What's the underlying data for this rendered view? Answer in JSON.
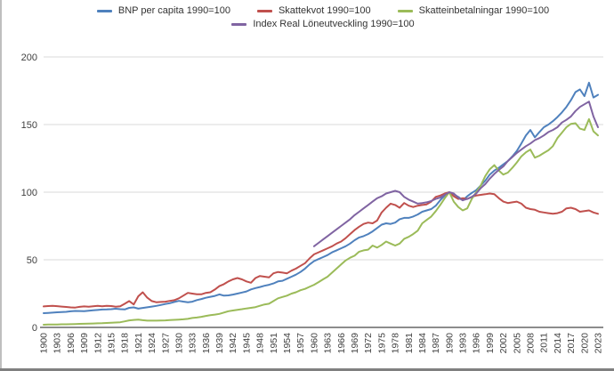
{
  "page": {
    "background": "#ffffff",
    "left_border_color": "#bfbfbf",
    "bottom_border_color": "#808080"
  },
  "chart": {
    "gridline_color": "#d9d9d9",
    "axis_line_color": "#8c8c8c",
    "tick_label_color": "#404040",
    "legend_rows": [
      [
        0,
        1,
        2
      ],
      [
        3
      ]
    ]
  },
  "chart_data": {
    "type": "line",
    "title": "",
    "xlabel": "",
    "ylabel": "",
    "ylim": [
      0,
      200
    ],
    "yticks": [
      0,
      50,
      100,
      150,
      200
    ],
    "grid": true,
    "legend_position": "top",
    "x_start": 1900,
    "x_end": 2023,
    "xtick_labels": [
      "1900",
      "1903",
      "1906",
      "1909",
      "1912",
      "1915",
      "1918",
      "1921",
      "1924",
      "1927",
      "1930",
      "1933",
      "1936",
      "1939",
      "1942",
      "1945",
      "1948",
      "1951",
      "1954",
      "1957",
      "1960",
      "1963",
      "1966",
      "1969",
      "1972",
      "1975",
      "1978",
      "1981",
      "1984",
      "1987",
      "1990",
      "1993",
      "1996",
      "1999",
      "2002",
      "2005",
      "2008",
      "2011",
      "2014",
      "2017",
      "2020",
      "2023"
    ],
    "series": [
      {
        "key": "bnp-per-capita",
        "name": "BNP per capita 1990=100",
        "color": "#4F81BD",
        "values": [
          10.5,
          10.7,
          10.9,
          11.2,
          11.4,
          11.5,
          11.9,
          12.2,
          12.1,
          12.0,
          12.4,
          12.6,
          12.9,
          13.2,
          13.3,
          13.5,
          13.8,
          13.5,
          13.3,
          14.5,
          14.8,
          13.9,
          14.4,
          14.9,
          15.4,
          15.9,
          16.6,
          17.3,
          17.9,
          18.8,
          19.6,
          19.1,
          18.6,
          19.0,
          20.2,
          21.0,
          21.9,
          22.6,
          23.3,
          24.4,
          23.5,
          23.7,
          24.3,
          25.0,
          25.8,
          26.6,
          28.1,
          29.1,
          29.9,
          30.8,
          31.5,
          32.5,
          34.0,
          34.5,
          36.0,
          37.5,
          39.0,
          41.0,
          43.5,
          46.5,
          49.0,
          50.5,
          52.0,
          53.5,
          55.5,
          57.0,
          58.5,
          60.0,
          62.0,
          64.5,
          66.5,
          67.5,
          69.0,
          71.0,
          73.5,
          76.0,
          77.0,
          76.5,
          77.5,
          80.0,
          81.0,
          81.0,
          82.0,
          83.5,
          85.5,
          86.5,
          87.5,
          90.0,
          94.0,
          97.5,
          100.0,
          98.5,
          96.5,
          94.0,
          97.0,
          99.5,
          101.5,
          105.0,
          108.5,
          113.0,
          116.0,
          118.0,
          120.5,
          123.0,
          126.5,
          130.5,
          136.0,
          142.0,
          146.0,
          140.5,
          144.5,
          148.0,
          150.0,
          152.5,
          155.5,
          159.0,
          163.0,
          168.0,
          174.0,
          176.0,
          171.0,
          181.0,
          170.0,
          172.0
        ]
      },
      {
        "key": "skattekvot",
        "name": "Skattekvot 1990=100",
        "color": "#C0504D",
        "values": [
          15.5,
          15.8,
          16.0,
          15.7,
          15.4,
          15.1,
          14.8,
          14.7,
          15.2,
          15.5,
          15.3,
          15.6,
          15.9,
          15.6,
          16.0,
          15.8,
          15.3,
          15.6,
          17.5,
          19.5,
          17.0,
          23.0,
          26.0,
          22.0,
          19.5,
          18.6,
          18.8,
          19.0,
          19.6,
          20.1,
          21.5,
          23.5,
          25.5,
          25.0,
          24.5,
          24.5,
          25.5,
          26.0,
          28.0,
          30.5,
          32.0,
          34.0,
          35.5,
          36.5,
          35.5,
          34.0,
          33.0,
          36.5,
          38.0,
          37.5,
          37.0,
          40.0,
          41.0,
          40.5,
          40.0,
          42.0,
          43.5,
          45.5,
          47.5,
          51.0,
          54.0,
          55.5,
          57.0,
          58.5,
          60.0,
          62.0,
          63.5,
          66.0,
          69.0,
          72.0,
          74.5,
          76.5,
          77.5,
          77.0,
          79.0,
          85.0,
          88.5,
          91.5,
          90.5,
          88.5,
          92.0,
          90.0,
          89.0,
          90.0,
          90.5,
          91.0,
          93.0,
          96.5,
          97.5,
          99.0,
          100.0,
          97.0,
          95.0,
          95.5,
          95.0,
          96.5,
          97.5,
          98.0,
          98.5,
          99.0,
          98.5,
          95.5,
          93.0,
          92.0,
          92.5,
          93.0,
          91.5,
          88.5,
          87.5,
          87.0,
          85.5,
          85.0,
          84.5,
          84.0,
          84.5,
          85.5,
          88.0,
          88.5,
          87.5,
          85.5,
          86.0,
          86.5,
          85.0,
          84.0
        ]
      },
      {
        "key": "skatteinbetalningar",
        "name": "Skatteinbetalningar 1990=100",
        "color": "#9BBB59",
        "values": [
          2.0,
          2.1,
          2.1,
          2.2,
          2.3,
          2.3,
          2.4,
          2.5,
          2.6,
          2.7,
          2.8,
          2.9,
          3.0,
          3.1,
          3.3,
          3.4,
          3.6,
          3.8,
          4.5,
          5.2,
          5.5,
          5.8,
          5.3,
          5.0,
          5.0,
          5.0,
          5.1,
          5.2,
          5.4,
          5.6,
          5.8,
          6.0,
          6.3,
          7.0,
          7.3,
          7.8,
          8.5,
          9.0,
          9.5,
          10.0,
          11.0,
          12.0,
          12.5,
          13.0,
          13.5,
          14.0,
          14.5,
          15.0,
          16.0,
          17.0,
          17.5,
          19.5,
          21.5,
          22.5,
          23.5,
          25.0,
          26.0,
          27.5,
          28.5,
          30.0,
          31.5,
          33.5,
          35.5,
          37.5,
          40.5,
          43.5,
          46.5,
          49.5,
          51.5,
          53.0,
          56.0,
          57.0,
          57.5,
          60.5,
          59.0,
          61.0,
          63.5,
          62.0,
          60.5,
          62.0,
          65.5,
          67.0,
          69.0,
          71.5,
          77.0,
          79.5,
          82.0,
          86.0,
          90.5,
          95.5,
          100.0,
          93.0,
          89.0,
          86.5,
          88.0,
          95.0,
          100.0,
          105.0,
          112.0,
          117.0,
          120.0,
          116.0,
          113.0,
          114.5,
          118.0,
          122.0,
          126.5,
          129.5,
          131.5,
          125.5,
          127.0,
          129.0,
          131.0,
          134.0,
          140.0,
          144.0,
          148.0,
          150.5,
          151.0,
          147.0,
          146.0,
          154.0,
          145.0,
          142.0
        ]
      },
      {
        "key": "index-real-loneutveckling",
        "name": "Index Real Löneutveckling 1990=100",
        "color": "#8064A2",
        "values": [
          null,
          null,
          null,
          null,
          null,
          null,
          null,
          null,
          null,
          null,
          null,
          null,
          null,
          null,
          null,
          null,
          null,
          null,
          null,
          null,
          null,
          null,
          null,
          null,
          null,
          null,
          null,
          null,
          null,
          null,
          null,
          null,
          null,
          null,
          null,
          null,
          null,
          null,
          null,
          null,
          null,
          null,
          null,
          null,
          null,
          null,
          null,
          null,
          null,
          null,
          null,
          null,
          null,
          null,
          null,
          null,
          null,
          null,
          null,
          null,
          60.0,
          62.5,
          65.0,
          67.5,
          70.0,
          72.5,
          75.0,
          77.5,
          80.0,
          83.0,
          85.5,
          88.0,
          90.5,
          93.0,
          95.5,
          97.0,
          99.0,
          100.0,
          101.0,
          100.0,
          96.5,
          94.5,
          93.0,
          91.5,
          92.0,
          92.5,
          93.5,
          95.0,
          96.0,
          98.0,
          100.0,
          99.0,
          96.0,
          94.0,
          95.0,
          96.5,
          99.0,
          103.0,
          106.0,
          110.0,
          113.5,
          116.5,
          119.0,
          123.0,
          126.0,
          129.0,
          131.5,
          134.0,
          136.0,
          138.5,
          140.0,
          142.0,
          144.5,
          146.0,
          148.0,
          151.5,
          153.5,
          156.0,
          160.0,
          163.0,
          165.0,
          167.0,
          156.0,
          148.0
        ]
      }
    ]
  }
}
